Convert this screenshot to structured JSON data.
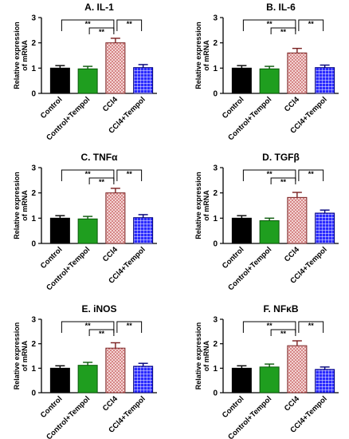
{
  "colors": {
    "control": "#000000",
    "control_tempol": "#1f9e1f",
    "ccl4": "#d9a0a0",
    "ccl4_tempol": "#1a1aff",
    "axis": "#000000"
  },
  "chart_data": [
    {
      "type": "bar",
      "title": "A. IL-1",
      "ylabel": "Relative expression of mRNA",
      "categories": [
        "Control",
        "Control+Tempol",
        "CCl4",
        "CCl4+Tempol"
      ],
      "values": [
        1.0,
        0.97,
        2.0,
        1.02
      ],
      "errors": [
        0.1,
        0.1,
        0.18,
        0.12
      ],
      "ylim": [
        0,
        3
      ],
      "yticks": [
        "0",
        "1",
        "2",
        "3"
      ],
      "significance": [
        {
          "from": 0,
          "to": 2,
          "label": "**"
        },
        {
          "from": 1,
          "to": 2,
          "label": "**"
        },
        {
          "from": 2,
          "to": 3,
          "label": "**"
        }
      ]
    },
    {
      "type": "bar",
      "title": "B. IL-6",
      "ylabel": "Relative expression of mRNA",
      "categories": [
        "Control",
        "Control+Tempol",
        "CCl4",
        "CCl4+Tempol"
      ],
      "values": [
        1.0,
        0.97,
        1.6,
        1.02
      ],
      "errors": [
        0.1,
        0.1,
        0.18,
        0.1
      ],
      "ylim": [
        0,
        3
      ],
      "yticks": [
        "0",
        "1",
        "2",
        "3"
      ],
      "significance": [
        {
          "from": 0,
          "to": 2,
          "label": "**"
        },
        {
          "from": 1,
          "to": 2,
          "label": "**"
        },
        {
          "from": 2,
          "to": 3,
          "label": "**"
        }
      ]
    },
    {
      "type": "bar",
      "title": "C. TNFα",
      "ylabel": "Relative expression of mRNA",
      "categories": [
        "Control",
        "Control+Tempol",
        "CCl4",
        "CCl4+Tempol"
      ],
      "values": [
        1.0,
        0.97,
        2.0,
        1.02
      ],
      "errors": [
        0.1,
        0.1,
        0.18,
        0.12
      ],
      "ylim": [
        0,
        3
      ],
      "yticks": [
        "0",
        "1",
        "2",
        "3"
      ],
      "significance": [
        {
          "from": 0,
          "to": 2,
          "label": "**"
        },
        {
          "from": 1,
          "to": 2,
          "label": "**"
        },
        {
          "from": 2,
          "to": 3,
          "label": "**"
        }
      ]
    },
    {
      "type": "bar",
      "title": "D. TGFβ",
      "ylabel": "Relative expression of mRNA",
      "categories": [
        "Control",
        "Control+Tempol",
        "CCl4",
        "CCl4+Tempol"
      ],
      "values": [
        1.0,
        0.9,
        1.82,
        1.2
      ],
      "errors": [
        0.1,
        0.1,
        0.2,
        0.12
      ],
      "ylim": [
        0,
        3
      ],
      "yticks": [
        "0",
        "1",
        "2",
        "3"
      ],
      "significance": [
        {
          "from": 0,
          "to": 2,
          "label": "**"
        },
        {
          "from": 1,
          "to": 2,
          "label": "**"
        },
        {
          "from": 2,
          "to": 3,
          "label": "**"
        }
      ]
    },
    {
      "type": "bar",
      "title": "E. iNOS",
      "ylabel": "Relative expression of mRNA",
      "categories": [
        "Control",
        "Control+Tempol",
        "CCl4",
        "CCl4+Tempol"
      ],
      "values": [
        1.0,
        1.12,
        1.82,
        1.08
      ],
      "errors": [
        0.1,
        0.12,
        0.22,
        0.12
      ],
      "ylim": [
        0,
        3
      ],
      "yticks": [
        "0",
        "1",
        "2",
        "3"
      ],
      "significance": [
        {
          "from": 0,
          "to": 2,
          "label": "**"
        },
        {
          "from": 1,
          "to": 2,
          "label": "**"
        },
        {
          "from": 2,
          "to": 3,
          "label": "**"
        }
      ]
    },
    {
      "type": "bar",
      "title": "F. NFκB",
      "ylabel": "Relative expression of mRNA",
      "categories": [
        "Control",
        "Control+Tempol",
        "CCl4",
        "CCl4+Tempol"
      ],
      "values": [
        1.0,
        1.05,
        1.92,
        0.95
      ],
      "errors": [
        0.1,
        0.12,
        0.2,
        0.1
      ],
      "ylim": [
        0,
        3
      ],
      "yticks": [
        "0",
        "1",
        "2",
        "3"
      ],
      "significance": [
        {
          "from": 0,
          "to": 2,
          "label": "**"
        },
        {
          "from": 1,
          "to": 2,
          "label": "**"
        },
        {
          "from": 2,
          "to": 3,
          "label": "**"
        }
      ]
    }
  ]
}
